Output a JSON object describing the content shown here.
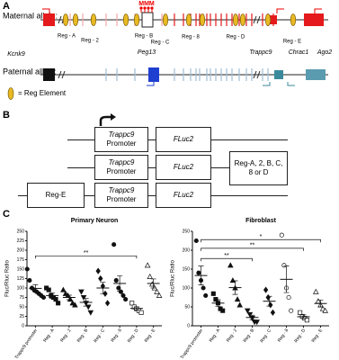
{
  "panel_a": {
    "label": "A",
    "maternal_label": "Maternal allele:",
    "paternal_label": "Paternal allele:",
    "imprint_mark": "MMM",
    "legend": "= Reg Element",
    "genes": [
      "Kcnk9",
      "Peg13",
      "Trappc9",
      "Chrac1",
      "Ago2"
    ],
    "reg_elements": [
      "Reg - A",
      "Reg - 2",
      "Reg - B",
      "Reg - C",
      "Reg - 8",
      "Reg - D",
      "Reg - E"
    ]
  },
  "panel_b": {
    "label": "B",
    "promoter_gene": "Trappc9",
    "promoter_word": "Promoter",
    "reporter": "FLuc2",
    "reg_insert": "Reg-A, 2, B, C, 8 or D",
    "reg_upstream": "Reg-E"
  },
  "panel_c_label": "C",
  "chart_data": [
    {
      "type": "strip",
      "title": "Primary Neuron",
      "y_label": "Fluc/Rluc Ratio",
      "categories": [
        "Trappc9 promoter",
        "Reg - A",
        "Reg - 2",
        "Reg - B",
        "Reg - C",
        "Reg - 8",
        "Reg - D",
        "Reg - E"
      ],
      "markers": [
        "circle",
        "square",
        "triangle",
        "triangle-down",
        "diamond",
        "circle",
        "square-open",
        "triangle-open"
      ],
      "values": [
        [
          150,
          120,
          100,
          95,
          90,
          85,
          80,
          75
        ],
        [
          100,
          95,
          80,
          75,
          70,
          60
        ],
        [
          95,
          85,
          80,
          70,
          60,
          55
        ],
        [
          90,
          75,
          60,
          50,
          35
        ],
        [
          145,
          125,
          105,
          85,
          60
        ],
        [
          215,
          120,
          100,
          90,
          80,
          70
        ],
        [
          60,
          50,
          45,
          40,
          35
        ],
        [
          160,
          130,
          110,
          100,
          90,
          80
        ]
      ],
      "means": [
        99,
        80,
        75,
        62,
        100,
        112,
        46,
        112
      ],
      "errors": [
        10,
        7,
        6,
        10,
        15,
        20,
        4,
        12
      ],
      "ylim": [
        0,
        250
      ],
      "yticks": [
        0,
        25,
        50,
        75,
        100,
        125,
        150,
        175,
        200,
        225,
        250
      ],
      "brackets": [
        {
          "from": "Trappc9 promoter",
          "to": "Reg - D",
          "y": 185,
          "label": "**"
        }
      ]
    },
    {
      "type": "strip",
      "title": "Fibroblast",
      "y_label": "Fluc/Rluc Ratio",
      "categories": [
        "Trappc9 promoter",
        "Reg - A",
        "Reg - 2",
        "Reg - B",
        "Reg - C",
        "Reg - 8",
        "Reg - D",
        "Reg - E"
      ],
      "markers": [
        "circle",
        "square",
        "triangle",
        "triangle-down",
        "diamond",
        "circle-open",
        "square-open",
        "triangle-open"
      ],
      "values": [
        [
          225,
          140,
          120,
          100,
          80
        ],
        [
          85,
          70,
          60,
          45,
          40
        ],
        [
          160,
          120,
          100,
          70,
          55
        ],
        [
          40,
          30,
          20,
          10,
          10
        ],
        [
          95,
          75,
          55,
          35
        ],
        [
          240,
          160,
          100,
          75,
          40
        ],
        [
          35,
          25,
          20,
          15
        ],
        [
          90,
          65,
          55,
          45,
          40
        ]
      ],
      "means": [
        133,
        60,
        101,
        22,
        65,
        123,
        24,
        59
      ],
      "errors": [
        25,
        9,
        18,
        6,
        13,
        35,
        5,
        9
      ],
      "ylim": [
        0,
        250
      ],
      "yticks": [
        0,
        50,
        100,
        150,
        200,
        250
      ],
      "brackets": [
        {
          "from": "Trappc9 promoter",
          "to": "Reg - B",
          "y": 178,
          "label": "**"
        },
        {
          "from": "Trappc9 promoter",
          "to": "Reg - D",
          "y": 205,
          "label": "**"
        },
        {
          "from": "Trappc9 promoter",
          "to": "Reg - E",
          "y": 228,
          "label": "*"
        }
      ]
    }
  ]
}
